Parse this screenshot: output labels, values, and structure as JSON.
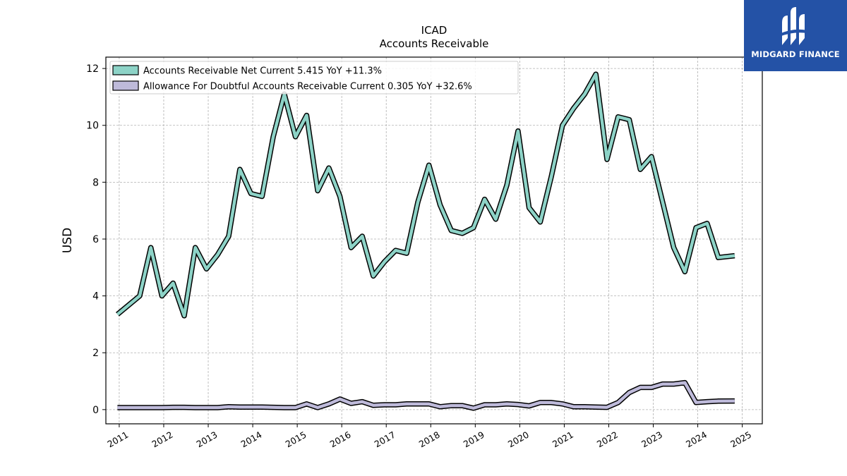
{
  "brand": {
    "name": "MIDGARD FINANCE",
    "logo_color": "#2452a6"
  },
  "chart_data": {
    "type": "line",
    "title": "ICAD",
    "subtitle": "Accounts Receivable",
    "xlabel": "",
    "ylabel": "USD",
    "xlim": [
      2010.7,
      2025.45
    ],
    "ylim": [
      -0.5,
      12.4
    ],
    "x_ticks": [
      2011,
      2012,
      2013,
      2014,
      2015,
      2016,
      2017,
      2018,
      2019,
      2020,
      2021,
      2022,
      2023,
      2024,
      2025
    ],
    "y_ticks": [
      0,
      2,
      4,
      6,
      8,
      10,
      12
    ],
    "grid": true,
    "legend_position": "top-left",
    "series": [
      {
        "name": "Accounts Receivable Net Current  5.415 YoY +11.3%",
        "color": "#8dd3c7",
        "x": [
          2010.96,
          2011.46,
          2011.71,
          2011.96,
          2012.21,
          2012.46,
          2012.71,
          2012.96,
          2013.21,
          2013.46,
          2013.71,
          2013.96,
          2014.21,
          2014.46,
          2014.71,
          2014.96,
          2015.21,
          2015.46,
          2015.71,
          2015.96,
          2016.21,
          2016.46,
          2016.71,
          2016.96,
          2017.21,
          2017.46,
          2017.71,
          2017.96,
          2018.21,
          2018.46,
          2018.71,
          2018.96,
          2019.21,
          2019.46,
          2019.71,
          2019.96,
          2020.21,
          2020.46,
          2020.71,
          2020.96,
          2021.21,
          2021.46,
          2021.71,
          2021.96,
          2022.21,
          2022.46,
          2022.71,
          2022.96,
          2023.21,
          2023.46,
          2023.71,
          2023.96,
          2024.21,
          2024.46,
          2024.83
        ],
        "values": [
          3.35,
          4.0,
          5.7,
          4.0,
          4.45,
          3.3,
          5.7,
          4.95,
          5.45,
          6.1,
          8.45,
          7.6,
          7.5,
          9.6,
          11.1,
          9.6,
          10.35,
          7.7,
          8.5,
          7.5,
          5.7,
          6.1,
          4.7,
          5.2,
          5.6,
          5.5,
          7.3,
          8.6,
          7.2,
          6.3,
          6.2,
          6.4,
          7.4,
          6.7,
          7.9,
          9.8,
          7.1,
          6.6,
          8.2,
          10.0,
          10.6,
          11.1,
          11.8,
          8.8,
          10.3,
          10.2,
          8.45,
          8.9,
          7.3,
          5.7,
          4.85,
          6.4,
          6.55,
          5.35,
          5.415
        ]
      },
      {
        "name": "Allowance For Doubtful Accounts Receivable Current  0.305 YoY +32.6%",
        "color": "#bebada",
        "x": [
          2010.96,
          2011.46,
          2011.71,
          2011.96,
          2012.21,
          2012.46,
          2012.71,
          2012.96,
          2013.21,
          2013.46,
          2013.71,
          2013.96,
          2014.21,
          2014.46,
          2014.71,
          2014.96,
          2015.21,
          2015.46,
          2015.71,
          2015.96,
          2016.21,
          2016.46,
          2016.71,
          2016.96,
          2017.21,
          2017.46,
          2017.71,
          2017.96,
          2018.21,
          2018.46,
          2018.71,
          2018.96,
          2019.21,
          2019.46,
          2019.71,
          2019.96,
          2020.21,
          2020.46,
          2020.71,
          2020.96,
          2021.21,
          2021.46,
          2021.71,
          2021.96,
          2022.21,
          2022.46,
          2022.71,
          2022.96,
          2023.21,
          2023.46,
          2023.71,
          2023.96,
          2024.21,
          2024.46,
          2024.83
        ],
        "values": [
          0.07,
          0.07,
          0.07,
          0.07,
          0.08,
          0.08,
          0.07,
          0.07,
          0.07,
          0.1,
          0.09,
          0.09,
          0.09,
          0.08,
          0.07,
          0.07,
          0.2,
          0.07,
          0.2,
          0.37,
          0.22,
          0.28,
          0.15,
          0.17,
          0.17,
          0.2,
          0.2,
          0.2,
          0.1,
          0.14,
          0.14,
          0.05,
          0.17,
          0.17,
          0.2,
          0.18,
          0.13,
          0.25,
          0.25,
          0.2,
          0.1,
          0.1,
          0.09,
          0.08,
          0.25,
          0.6,
          0.78,
          0.78,
          0.9,
          0.9,
          0.95,
          0.25,
          0.28,
          0.3,
          0.305
        ]
      }
    ]
  }
}
